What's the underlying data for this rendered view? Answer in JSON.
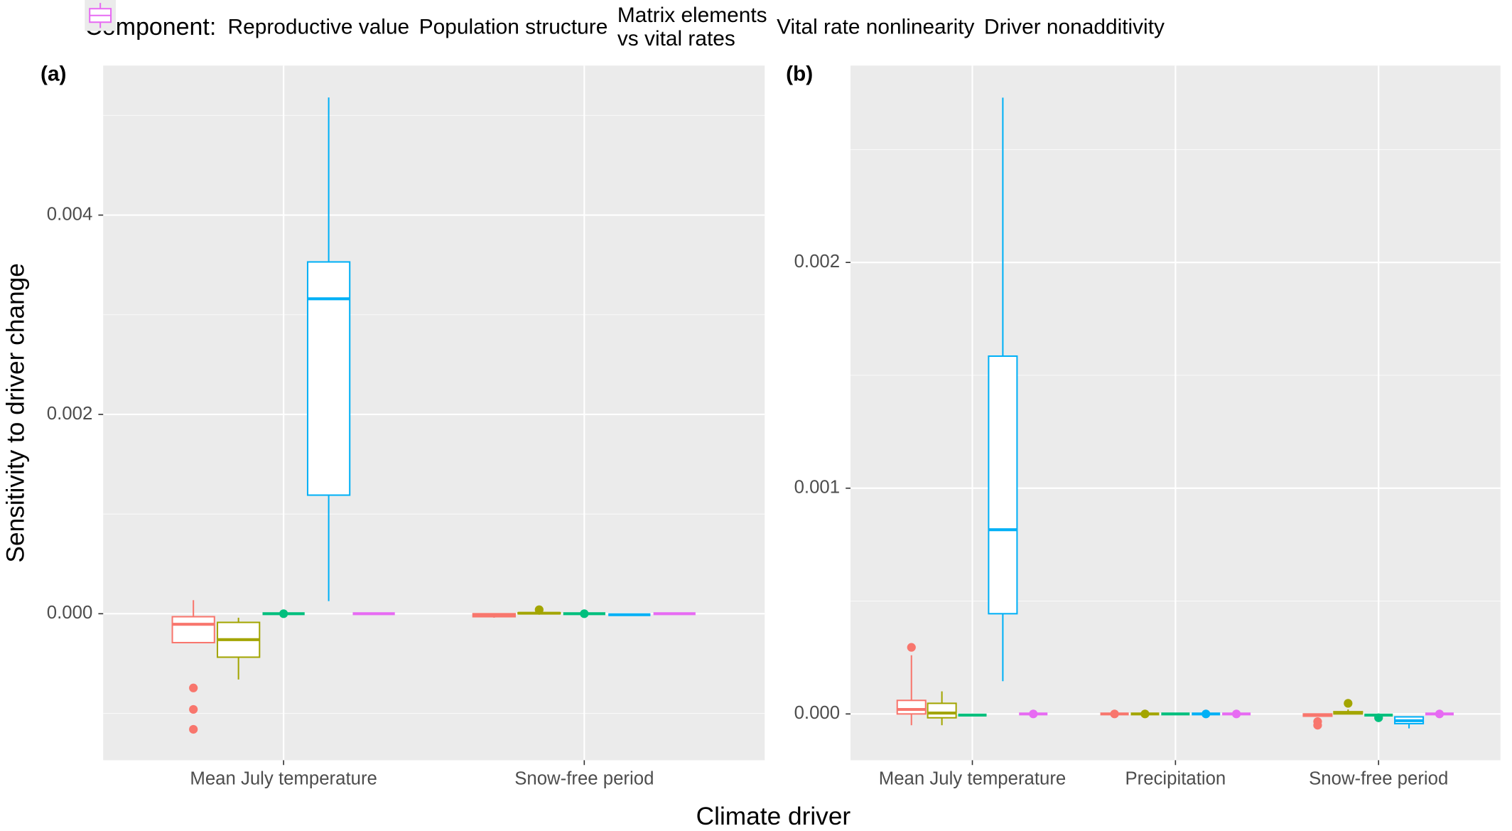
{
  "chart_data": [
    {
      "type": "box",
      "title": "(a)",
      "legend_title": "Component:",
      "ylabel": "Sensitivity to driver change",
      "xlabel": "Climate driver",
      "categories": [
        "Mean July temperature",
        "Snow-free period"
      ],
      "ylim": [
        -0.00147,
        0.0055
      ],
      "yticks": [
        {
          "value": 0,
          "label": "0.000"
        },
        0.002,
        0.004
      ],
      "minor_yticks": [
        -0.001,
        0.001,
        0.003,
        0.005
      ],
      "series": [
        {
          "name": "Reproductive value",
          "color": "#F8766D",
          "values": [
            {
              "whisker_low": -0.00029,
              "q1": -0.00029,
              "median": -0.000106,
              "q3": -3e-05,
              "whisker_high": 0.000136,
              "outliers": [
                -0.000745,
                -0.00096,
                -0.00116
              ]
            },
            {
              "whisker_low": -4e-05,
              "q1": -3e-05,
              "median": -1e-05,
              "q3": 0,
              "whisker_high": 0,
              "outliers": []
            }
          ]
        },
        {
          "name": "Population structure",
          "color": "#A3A500",
          "values": [
            {
              "whisker_low": -0.00066,
              "q1": -0.000436,
              "median": -0.00026,
              "q3": -8.7e-05,
              "whisker_high": -4e-05,
              "outliers": []
            },
            {
              "whisker_low": -1e-05,
              "q1": 0,
              "median": 5e-06,
              "q3": 1e-05,
              "whisker_high": 2e-05,
              "outliers": [
                4e-05
              ]
            }
          ]
        },
        {
          "name": "Matrix elements\nvs vital rates",
          "color": "#00BF7D",
          "values": [
            {
              "whisker_low": 0,
              "q1": 0,
              "median": 0,
              "q3": 0,
              "whisker_high": 0,
              "outliers": [
                0
              ]
            },
            {
              "whisker_low": 0,
              "q1": 0,
              "median": 0,
              "q3": 0,
              "whisker_high": 0,
              "outliers": [
                0
              ]
            }
          ]
        },
        {
          "name": "Vital rate nonlinearity",
          "color": "#00B0F6",
          "values": [
            {
              "whisker_low": 0.000126,
              "q1": 0.00119,
              "median": 0.00316,
              "q3": 0.00353,
              "whisker_high": 0.00518,
              "outliers": []
            },
            {
              "whisker_low": -1e-05,
              "q1": -1e-05,
              "median": -1e-05,
              "q3": -1e-05,
              "whisker_high": -1e-05,
              "outliers": []
            }
          ]
        },
        {
          "name": "Driver nonadditivity",
          "color": "#E76BF3",
          "values": [
            {
              "whisker_low": 0,
              "q1": 0,
              "median": 0,
              "q3": 0,
              "whisker_high": 0,
              "outliers": []
            },
            {
              "whisker_low": 0,
              "q1": 0,
              "median": 0,
              "q3": 0,
              "whisker_high": 0,
              "outliers": []
            }
          ]
        }
      ]
    },
    {
      "type": "box",
      "title": "(b)",
      "categories": [
        "Mean July temperature",
        "Precipitation",
        "Snow-free period"
      ],
      "ylim": [
        -0.000205,
        0.002872
      ],
      "yticks": [
        {
          "value": 0,
          "label": "0.000"
        },
        0.001,
        0.002
      ],
      "minor_yticks": [
        0.0005,
        0.0015,
        0.0025
      ],
      "series": [
        {
          "color": "#F8766D",
          "values": [
            {
              "whisker_low": -5e-05,
              "q1": 0,
              "median": 2e-05,
              "q3": 6e-05,
              "whisker_high": 0.00026,
              "outliers": [
                0.000295
              ]
            },
            {
              "whisker_low": 0,
              "q1": 0,
              "median": 0,
              "q3": 0,
              "whisker_high": 0,
              "outliers": [
                0
              ]
            },
            {
              "whisker_low": -1e-05,
              "q1": -1e-05,
              "median": -5e-06,
              "q3": 0,
              "whisker_high": 0,
              "outliers": [
                -3.4e-05,
                -5e-05
              ]
            }
          ]
        },
        {
          "color": "#A3A500",
          "values": [
            {
              "whisker_low": -5e-05,
              "q1": -1.7e-05,
              "median": 4e-06,
              "q3": 4.7e-05,
              "whisker_high": 0.0001,
              "outliers": []
            },
            {
              "whisker_low": 0,
              "q1": 0,
              "median": 0,
              "q3": 0,
              "whisker_high": 0,
              "outliers": [
                0
              ]
            },
            {
              "whisker_low": 0,
              "q1": 0,
              "median": 5e-06,
              "q3": 1e-05,
              "whisker_high": 2e-05,
              "outliers": [
                4.7e-05
              ]
            }
          ]
        },
        {
          "color": "#00BF7D",
          "values": [
            {
              "whisker_low": -5e-06,
              "q1": -5e-06,
              "median": -5e-06,
              "q3": -5e-06,
              "whisker_high": -5e-06,
              "outliers": []
            },
            {
              "whisker_low": 0,
              "q1": 0,
              "median": 0,
              "q3": 0,
              "whisker_high": 0,
              "outliers": []
            },
            {
              "whisker_low": -5e-06,
              "q1": -5e-06,
              "median": -5e-06,
              "q3": -5e-06,
              "whisker_high": -5e-06,
              "outliers": [
                -1.7e-05
              ]
            }
          ]
        },
        {
          "color": "#00B0F6",
          "values": [
            {
              "whisker_low": 0.000145,
              "q1": 0.000444,
              "median": 0.000816,
              "q3": 0.001585,
              "whisker_high": 0.00273,
              "outliers": []
            },
            {
              "whisker_low": 0,
              "q1": 0,
              "median": 0,
              "q3": 0,
              "whisker_high": 0,
              "outliers": [
                0
              ]
            },
            {
              "whisker_low": -6.4e-05,
              "q1": -4.3e-05,
              "median": -3e-05,
              "q3": -1.3e-05,
              "whisker_high": -1e-05,
              "outliers": []
            }
          ]
        },
        {
          "color": "#E76BF3",
          "values": [
            {
              "whisker_low": 0,
              "q1": 0,
              "median": 0,
              "q3": 0,
              "whisker_high": 0,
              "outliers": [
                0
              ]
            },
            {
              "whisker_low": 0,
              "q1": 0,
              "median": 0,
              "q3": 0,
              "whisker_high": 0,
              "outliers": [
                0
              ]
            },
            {
              "whisker_low": 0,
              "q1": 0,
              "median": 0,
              "q3": 0,
              "whisker_high": 0,
              "outliers": [
                0
              ]
            }
          ]
        }
      ]
    }
  ]
}
